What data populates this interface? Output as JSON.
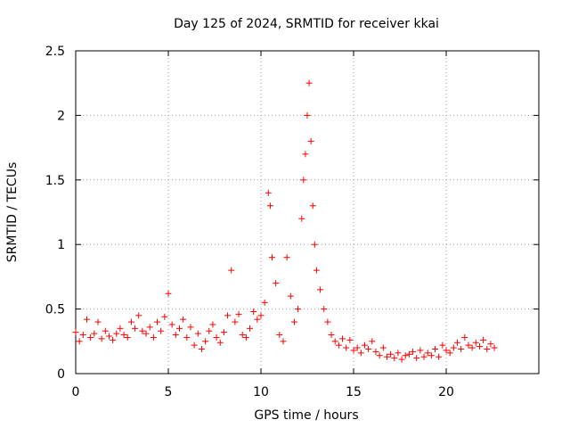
{
  "chart_data": {
    "type": "scatter",
    "title": "Day 125 of 2024, SRMTID for receiver kkai",
    "xlabel": "GPS time / hours",
    "ylabel": "SRMTID / TECUs",
    "xlim": [
      0,
      25
    ],
    "ylim": [
      0,
      2.5
    ],
    "xticks": [
      0,
      5,
      10,
      15,
      20
    ],
    "xtick_labels": [
      "0",
      "5",
      "10",
      "15",
      "20"
    ],
    "yticks": [
      0,
      0.5,
      1,
      1.5,
      2,
      2.5
    ],
    "ytick_labels": [
      "0",
      "0.5",
      "1",
      "1.5",
      "2",
      "2.5"
    ],
    "grid": true,
    "marker": "+",
    "series": [
      {
        "name": "kkai",
        "color": "#ff0000",
        "x": [
          0.0,
          0.2,
          0.4,
          0.6,
          0.8,
          1.0,
          1.2,
          1.4,
          1.6,
          1.8,
          2.0,
          2.2,
          2.4,
          2.6,
          2.8,
          3.0,
          3.2,
          3.4,
          3.6,
          3.8,
          4.0,
          4.2,
          4.4,
          4.6,
          4.8,
          5.0,
          5.2,
          5.4,
          5.6,
          5.8,
          6.0,
          6.2,
          6.4,
          6.6,
          6.8,
          7.0,
          7.2,
          7.4,
          7.6,
          7.8,
          8.0,
          8.2,
          8.4,
          8.6,
          8.8,
          9.0,
          9.2,
          9.4,
          9.6,
          9.8,
          10.0,
          10.2,
          10.4,
          10.5,
          10.6,
          10.8,
          11.0,
          11.2,
          11.4,
          11.6,
          11.8,
          12.0,
          12.2,
          12.3,
          12.4,
          12.5,
          12.6,
          12.7,
          12.8,
          12.9,
          13.0,
          13.2,
          13.4,
          13.6,
          13.8,
          14.0,
          14.2,
          14.4,
          14.6,
          14.8,
          15.0,
          15.2,
          15.4,
          15.6,
          15.8,
          16.0,
          16.2,
          16.4,
          16.6,
          16.8,
          17.0,
          17.2,
          17.4,
          17.6,
          17.8,
          18.0,
          18.2,
          18.4,
          18.6,
          18.8,
          19.0,
          19.2,
          19.4,
          19.6,
          19.8,
          20.0,
          20.2,
          20.4,
          20.6,
          20.8,
          21.0,
          21.2,
          21.4,
          21.6,
          21.8,
          22.0,
          22.2,
          22.4,
          22.6
        ],
        "y": [
          0.32,
          0.25,
          0.3,
          0.42,
          0.28,
          0.31,
          0.4,
          0.27,
          0.33,
          0.29,
          0.26,
          0.31,
          0.35,
          0.3,
          0.28,
          0.4,
          0.35,
          0.45,
          0.33,
          0.31,
          0.36,
          0.28,
          0.4,
          0.33,
          0.44,
          0.62,
          0.38,
          0.3,
          0.35,
          0.42,
          0.28,
          0.36,
          0.22,
          0.31,
          0.19,
          0.25,
          0.33,
          0.38,
          0.28,
          0.24,
          0.32,
          0.45,
          0.8,
          0.4,
          0.46,
          0.3,
          0.28,
          0.35,
          0.48,
          0.42,
          0.45,
          0.55,
          1.4,
          1.3,
          0.9,
          0.7,
          0.3,
          0.25,
          0.9,
          0.6,
          0.4,
          0.5,
          1.2,
          1.5,
          1.7,
          2.0,
          2.25,
          1.8,
          1.3,
          1.0,
          0.8,
          0.65,
          0.5,
          0.4,
          0.3,
          0.25,
          0.22,
          0.27,
          0.2,
          0.26,
          0.18,
          0.2,
          0.16,
          0.22,
          0.19,
          0.25,
          0.17,
          0.14,
          0.2,
          0.13,
          0.15,
          0.12,
          0.16,
          0.11,
          0.14,
          0.15,
          0.17,
          0.12,
          0.18,
          0.13,
          0.16,
          0.14,
          0.19,
          0.13,
          0.22,
          0.18,
          0.16,
          0.2,
          0.24,
          0.19,
          0.28,
          0.22,
          0.2,
          0.24,
          0.21,
          0.26,
          0.19,
          0.23,
          0.2
        ]
      }
    ]
  }
}
